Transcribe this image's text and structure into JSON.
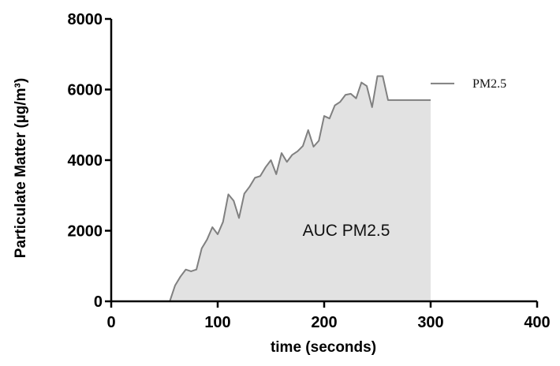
{
  "chart_data": {
    "type": "area",
    "xlabel": "time (seconds)",
    "ylabel": "Particulate Matter (µg/m³)",
    "xlim": [
      0,
      400
    ],
    "ylim": [
      0,
      8000
    ],
    "xticks": [
      0,
      100,
      200,
      300,
      400
    ],
    "yticks": [
      0,
      2000,
      4000,
      6000,
      8000
    ],
    "xtick_labels": [
      "0",
      "100",
      "200",
      "300",
      "400"
    ],
    "ytick_labels": [
      "0",
      "2000",
      "4000",
      "6000",
      "8000"
    ],
    "grid": false,
    "legend": {
      "position": "right",
      "label": "PM2.5"
    },
    "annotation": "AUC PM2.5",
    "series": [
      {
        "name": "PM2.5",
        "color": "#808080",
        "fill": "#e2e2e2",
        "x": [
          0,
          55,
          60,
          65,
          70,
          75,
          80,
          85,
          90,
          95,
          100,
          105,
          110,
          115,
          120,
          125,
          130,
          135,
          140,
          145,
          150,
          155,
          160,
          165,
          170,
          175,
          180,
          185,
          190,
          195,
          200,
          205,
          210,
          215,
          220,
          225,
          230,
          235,
          240,
          245,
          250,
          255,
          260,
          265,
          270,
          275,
          280,
          285,
          290,
          295,
          300
        ],
        "y": [
          0,
          0,
          450,
          700,
          900,
          850,
          900,
          1500,
          1750,
          2100,
          1900,
          2250,
          3030,
          2850,
          2360,
          3050,
          3250,
          3500,
          3550,
          3800,
          4000,
          3600,
          4200,
          3950,
          4150,
          4250,
          4400,
          4850,
          4380,
          4550,
          5250,
          5180,
          5550,
          5650,
          5850,
          5880,
          5750,
          6200,
          6100,
          5500,
          6380,
          6380,
          5700,
          5700,
          5700,
          5700,
          5700,
          5700,
          5700,
          5700,
          5700
        ]
      }
    ]
  }
}
